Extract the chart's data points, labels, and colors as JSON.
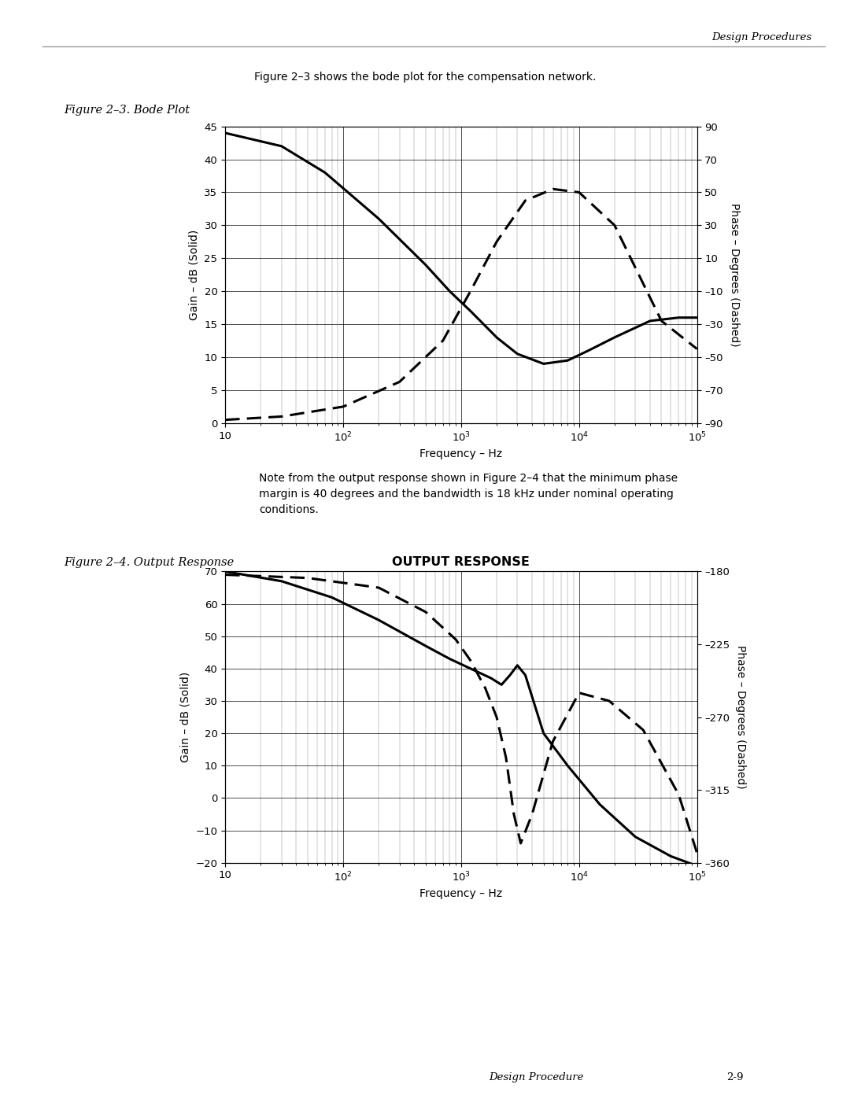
{
  "page_bg": "#ffffff",
  "header_text": "Design Procedures",
  "footer_left": "Design Procedure",
  "footer_right": "2-9",
  "intro_text": "Figure 2–3 shows the bode plot for the compensation network.",
  "fig1_label": "Figure 2–3. Bode Plot",
  "fig2_label": "Figure 2–4. Output Response",
  "note_text": "Note from the output response shown in Figure 2–4 that the minimum phase\nmargin is 40 degrees and the bandwidth is 18 kHz under nominal operating\nconditions.",
  "plot1": {
    "xlabel": "Frequency – Hz",
    "ylabel_left": "Gain – dB (Solid)",
    "ylabel_right": "Phase – Degrees (Dashed)",
    "xlim_log": [
      10,
      100000
    ],
    "ylim_left": [
      0,
      45
    ],
    "ylim_right": [
      -90,
      90
    ],
    "yticks_left": [
      0,
      5,
      10,
      15,
      20,
      25,
      30,
      35,
      40,
      45
    ],
    "yticks_right": [
      -90,
      -70,
      -50,
      -30,
      -10,
      10,
      30,
      50,
      70,
      90
    ],
    "gain_freq": [
      10,
      30,
      70,
      200,
      500,
      800,
      1200,
      2000,
      3000,
      5000,
      8000,
      12000,
      20000,
      40000,
      70000,
      100000
    ],
    "gain_vals": [
      44,
      42,
      38,
      31,
      24,
      20,
      17,
      13,
      10.5,
      9,
      9.5,
      11,
      13,
      15.5,
      16,
      16
    ],
    "phase_freq": [
      10,
      30,
      100,
      300,
      700,
      1200,
      2000,
      3500,
      6000,
      10000,
      20000,
      50000,
      100000
    ],
    "phase_vals": [
      -88,
      -86,
      -80,
      -65,
      -40,
      -10,
      20,
      45,
      52,
      50,
      30,
      -28,
      -45
    ]
  },
  "plot2": {
    "title": "OUTPUT RESPONSE",
    "xlabel": "Frequency – Hz",
    "ylabel_left": "Gain – dB (Solid)",
    "ylabel_right": "Phase – Degrees (Dashed)",
    "xlim_log": [
      10,
      100000
    ],
    "ylim_left": [
      -20,
      70
    ],
    "ylim_right": [
      -360,
      -180
    ],
    "yticks_left": [
      -20,
      -10,
      0,
      10,
      20,
      30,
      40,
      50,
      60,
      70
    ],
    "yticks_right": [
      -360,
      -315,
      -270,
      -225,
      -180
    ],
    "gain_freq": [
      10,
      30,
      80,
      200,
      500,
      800,
      1200,
      1800,
      2200,
      2600,
      3000,
      3500,
      5000,
      8000,
      15000,
      30000,
      60000,
      100000
    ],
    "gain_vals": [
      70,
      67,
      62,
      55,
      47,
      43,
      40,
      37,
      35,
      38,
      41,
      38,
      20,
      10,
      -2,
      -12,
      -18,
      -21
    ],
    "phase_freq": [
      10,
      50,
      200,
      500,
      900,
      1200,
      1600,
      2000,
      2400,
      2800,
      3200,
      4000,
      6000,
      10000,
      18000,
      35000,
      70000,
      100000
    ],
    "phase_vals": [
      -182,
      -184,
      -190,
      -205,
      -222,
      -235,
      -252,
      -270,
      -295,
      -330,
      -348,
      -330,
      -285,
      -255,
      -260,
      -278,
      -318,
      -354
    ]
  }
}
